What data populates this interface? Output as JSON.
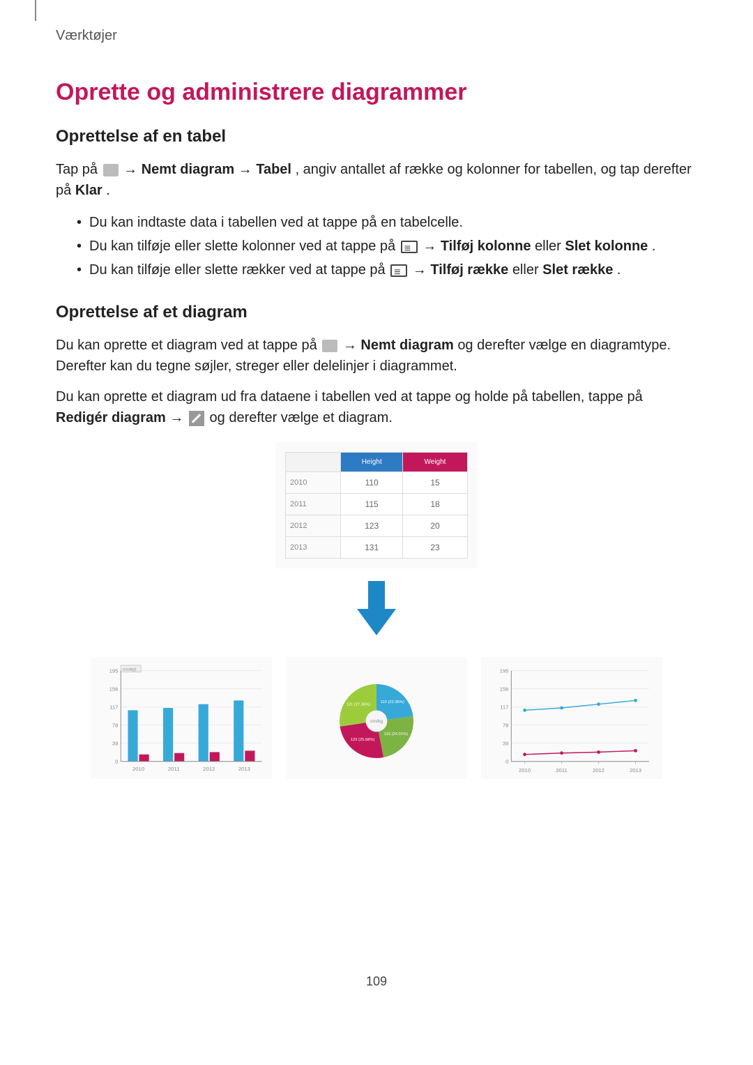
{
  "header": {
    "tools": "Værktøjer"
  },
  "h1": {
    "title": "Oprette og administrere diagrammer",
    "color": "#c2185b"
  },
  "section1": {
    "heading": "Oprettelse af en tabel",
    "p1_prefix": "Tap på ",
    "p1_b1": "Nemt diagram",
    "p1_mid": " → ",
    "p1_b2": "Tabel",
    "p1_suffix": ", angiv antallet af række og kolonner for tabellen, og tap derefter på ",
    "p1_b3": "Klar",
    "p1_end": ".",
    "li1": "Du kan indtaste data i tabellen ved at tappe på en tabelcelle.",
    "li2_a": "Du kan tilføje eller slette kolonner ved at tappe på ",
    "li2_b": " → ",
    "li2_b1": "Tilføj kolonne",
    "li2_c": " eller ",
    "li2_b2": "Slet kolonne",
    "li2_d": ".",
    "li3_a": "Du kan tilføje eller slette rækker ved at tappe på ",
    "li3_b": " → ",
    "li3_b1": "Tilføj række",
    "li3_c": " eller ",
    "li3_b2": "Slet række",
    "li3_d": "."
  },
  "section2": {
    "heading": "Oprettelse af et diagram",
    "p1_a": "Du kan oprette et diagram ved at tappe på ",
    "p1_b": " → ",
    "p1_b1": "Nemt diagram",
    "p1_c": " og derefter vælge en diagramtype. Derefter kan du tegne søjler, streger eller delelinjer i diagrammet.",
    "p2_a": "Du kan oprette et diagram ud fra dataene i tabellen ved at tappe og holde på tabellen, tappe på ",
    "p2_b1": "Redigér diagram",
    "p2_b": " → ",
    "p2_c": " og derefter vælge et diagram."
  },
  "table": {
    "header_bg1": "#2e7bc4",
    "header_bg2": "#c2185b",
    "h1": "Height",
    "h2": "Weight",
    "rows": [
      {
        "y": "2010",
        "a": "110",
        "b": "15"
      },
      {
        "y": "2011",
        "a": "115",
        "b": "18"
      },
      {
        "y": "2012",
        "a": "123",
        "b": "20"
      },
      {
        "y": "2013",
        "a": "131",
        "b": "23"
      }
    ]
  },
  "arrow_color": "#1e88c7",
  "bar_chart": {
    "type": "bar",
    "legend": "(cm/kg)",
    "y_ticks": [
      "195",
      "156",
      "117",
      "78",
      "39",
      "0"
    ],
    "x_labels": [
      "2010",
      "2011",
      "2012",
      "2013"
    ],
    "bars1": [
      110,
      115,
      123,
      131
    ],
    "bars2": [
      15,
      18,
      20,
      23
    ],
    "bar_color1": "#36a9d9",
    "bar_color2": "#c2185b",
    "y_max": 195,
    "grid_color": "#dddddd",
    "text_color": "#888888"
  },
  "pie_chart": {
    "type": "pie",
    "center_label": "cm/kg",
    "slices": [
      {
        "label": "110 (22.96%)",
        "value": 110,
        "color": "#36a9d9"
      },
      {
        "label": "115 (24.01%)",
        "value": 115,
        "color": "#7cb342"
      },
      {
        "label": "123 (25.68%)",
        "value": 123,
        "color": "#c2185b"
      },
      {
        "label": "131 (27.35%)",
        "value": 131,
        "color": "#9ccc3c"
      }
    ]
  },
  "line_chart": {
    "type": "line",
    "y_ticks": [
      "195",
      "156",
      "117",
      "78",
      "39",
      "0"
    ],
    "x_labels": [
      "2010",
      "2011",
      "2012",
      "2013"
    ],
    "series1": {
      "values": [
        110,
        115,
        123,
        131
      ],
      "color": "#36a9d9"
    },
    "series2": {
      "values": [
        15,
        18,
        20,
        23
      ],
      "color": "#c2185b"
    },
    "y_max": 195,
    "grid_color": "#dddddd",
    "text_color": "#888888"
  },
  "page_number": "109"
}
